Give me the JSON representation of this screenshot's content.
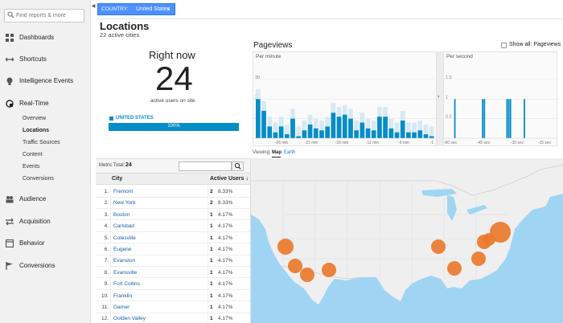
{
  "sidebar": {
    "search_placeholder": "Find reports & more",
    "nav": [
      {
        "label": "Dashboards",
        "icon": "dashboard-grid-icon"
      },
      {
        "label": "Shortcuts",
        "icon": "shortcuts-arrow-icon"
      },
      {
        "label": "Intelligence Events",
        "icon": "lightbulb-icon"
      },
      {
        "label": "Real-Time",
        "icon": "realtime-clock-icon"
      },
      {
        "label": "Audience",
        "icon": "audience-people-icon"
      },
      {
        "label": "Acquisition",
        "icon": "acquisition-arrows-icon"
      },
      {
        "label": "Behavior",
        "icon": "behavior-window-icon"
      },
      {
        "label": "Conversions",
        "icon": "conversions-flag-icon"
      }
    ],
    "realtime_items": [
      "Overview",
      "Locations",
      "Traffic Sources",
      "Content",
      "Events",
      "Conversions"
    ],
    "active_item": "Locations"
  },
  "filter": {
    "key": "COUNTRY:",
    "value": "United States",
    "close": "×"
  },
  "page": {
    "title": "Locations",
    "subtitle": "22 active cities"
  },
  "right_now": {
    "title": "Right now",
    "count": "24",
    "caption": "active users on site",
    "country": "UNITED STATES",
    "country_pct_label": "100%",
    "country_fill": 1.0
  },
  "pageviews": {
    "title": "Pageviews",
    "show_all_label": "Show all: Pageviews",
    "per_minute_label": "Per minute",
    "per_second_label": "Per second",
    "arrow": "›",
    "viewing_label": "Viewing:",
    "map_label": "Map",
    "earth_label": "Earth"
  },
  "chart_data": [
    {
      "type": "bar",
      "title": "Per minute",
      "ylim": [
        0,
        30
      ],
      "y_ticks": [
        "30",
        "20",
        "10"
      ],
      "x_tick_labels": [
        "-26 min",
        "-21 min",
        "-16 min",
        "-11 min",
        "-6 min",
        "-1"
      ],
      "values": [
        20,
        14,
        6,
        3,
        6,
        2,
        10,
        1,
        4,
        7,
        5,
        4,
        6,
        13,
        11,
        12,
        10,
        4,
        8,
        5,
        4,
        11,
        11,
        5,
        3,
        9,
        3,
        3,
        4,
        2,
        1
      ],
      "color": "#058dc7",
      "background_bars": true
    },
    {
      "type": "bar",
      "title": "Per second",
      "ylim": [
        0,
        1.5
      ],
      "y_ticks": [
        "1.5",
        "1",
        "0.5"
      ],
      "x_tick_labels": [
        "-60 sec",
        "-45 sec",
        "-30 sec",
        "-15 sec"
      ],
      "bars_at_seconds_ago": [
        58,
        42,
        41,
        28,
        27,
        26,
        18
      ],
      "value": 1,
      "color": "#058dc7"
    }
  ],
  "table": {
    "metric_total_label": "Metric Total:",
    "metric_total_value": "24",
    "search_icon": "magnifier-icon",
    "col_city": "City",
    "col_users": "Active Users",
    "sort_arrow": "↓",
    "rows": [
      {
        "n": "1.",
        "city": "Fremont",
        "users": "2",
        "pct": "8.33%"
      },
      {
        "n": "2.",
        "city": "New York",
        "users": "2",
        "pct": "8.33%"
      },
      {
        "n": "3.",
        "city": "Boston",
        "users": "1",
        "pct": "4.17%"
      },
      {
        "n": "4.",
        "city": "Carlsbad",
        "users": "1",
        "pct": "4.17%"
      },
      {
        "n": "5.",
        "city": "Colesville",
        "users": "1",
        "pct": "4.17%"
      },
      {
        "n": "6.",
        "city": "Eugene",
        "users": "1",
        "pct": "4.17%"
      },
      {
        "n": "7.",
        "city": "Evanston",
        "users": "1",
        "pct": "4.17%"
      },
      {
        "n": "8.",
        "city": "Evansville",
        "users": "1",
        "pct": "4.17%"
      },
      {
        "n": "9.",
        "city": "Fort Collins",
        "users": "1",
        "pct": "4.17%"
      },
      {
        "n": "10.",
        "city": "Franklin",
        "users": "1",
        "pct": "4.17%"
      },
      {
        "n": "11.",
        "city": "Garner",
        "users": "1",
        "pct": "4.17%"
      },
      {
        "n": "12.",
        "city": "Golden Valley",
        "users": "1",
        "pct": "4.17%"
      }
    ]
  },
  "map": {
    "land_color": "#efefef",
    "water_color": "#9fd5f3",
    "marker_color": "#ea7a2c"
  }
}
